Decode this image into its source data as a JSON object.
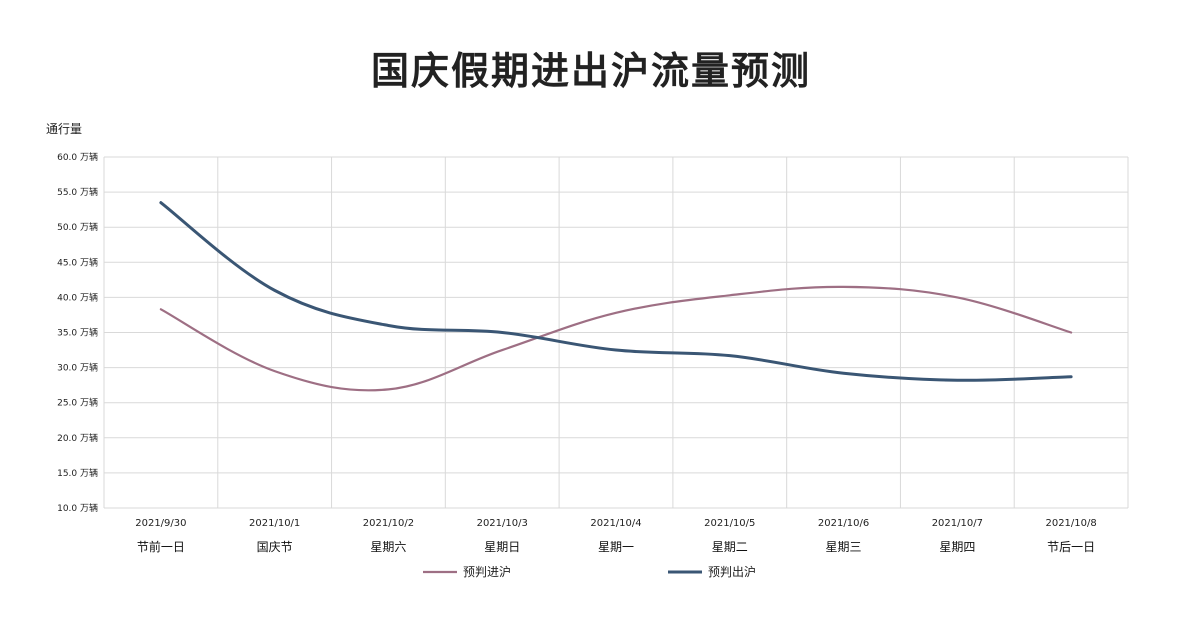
{
  "chart_data": {
    "type": "line",
    "title": "国庆假期进出沪流量预测",
    "ylabel": "通行量",
    "ylim": [
      10,
      60
    ],
    "yticks": [
      "10.0 万辆",
      "15.0 万辆",
      "20.0 万辆",
      "25.0 万辆",
      "30.0 万辆",
      "35.0 万辆",
      "40.0 万辆",
      "45.0 万辆",
      "50.0 万辆",
      "55.0 万辆",
      "60.0 万辆"
    ],
    "ytick_values": [
      10,
      15,
      20,
      25,
      30,
      35,
      40,
      45,
      50,
      55,
      60
    ],
    "categories": [
      "2021/9/30",
      "2021/10/1",
      "2021/10/2",
      "2021/10/3",
      "2021/10/4",
      "2021/10/5",
      "2021/10/6",
      "2021/10/7",
      "2021/10/8"
    ],
    "category_sublabels": [
      "节前一日",
      "国庆节",
      "星期六",
      "星期日",
      "星期一",
      "星期二",
      "星期三",
      "星期四",
      "节后一日"
    ],
    "series": [
      {
        "name": "预判进沪",
        "color": "#9e6f84",
        "values": [
          38.3,
          29.5,
          26.9,
          32.5,
          37.8,
          40.3,
          41.5,
          40.0,
          35.0
        ]
      },
      {
        "name": "预判出沪",
        "color": "#3a5674",
        "values": [
          53.5,
          41.0,
          36.0,
          35.0,
          32.5,
          31.7,
          29.2,
          28.2,
          28.7
        ]
      }
    ],
    "grid": true,
    "legend": "bottom"
  }
}
